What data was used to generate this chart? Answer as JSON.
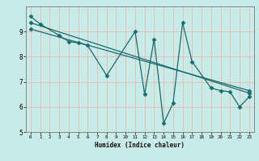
{
  "title": "",
  "xlabel": "Humidex (Indice chaleur)",
  "bg_color": "#c8ebe8",
  "grid_color": "#e8b8b8",
  "line_color": "#1a6b6b",
  "xlim": [
    -0.5,
    23.5
  ],
  "ylim": [
    5,
    10
  ],
  "yticks": [
    5,
    6,
    7,
    8,
    9
  ],
  "xticks": [
    0,
    1,
    2,
    3,
    4,
    5,
    6,
    7,
    8,
    9,
    10,
    11,
    12,
    13,
    14,
    15,
    16,
    17,
    18,
    19,
    20,
    21,
    22,
    23
  ],
  "curve1_x": [
    0,
    1,
    3,
    4,
    5,
    6,
    8,
    11,
    12,
    13,
    14,
    15,
    16,
    17,
    19,
    20,
    21,
    22,
    23
  ],
  "curve1_y": [
    9.6,
    9.3,
    8.85,
    8.6,
    8.55,
    8.45,
    7.25,
    9.0,
    6.5,
    8.7,
    5.35,
    6.15,
    9.35,
    7.8,
    6.75,
    6.65,
    6.6,
    6.0,
    6.4
  ],
  "curve2_x": [
    0,
    23
  ],
  "curve2_y": [
    9.35,
    6.55
  ],
  "curve3_x": [
    0,
    23
  ],
  "curve3_y": [
    9.1,
    6.65
  ],
  "marker": "D",
  "markersize": 2.5,
  "linewidth": 0.9
}
